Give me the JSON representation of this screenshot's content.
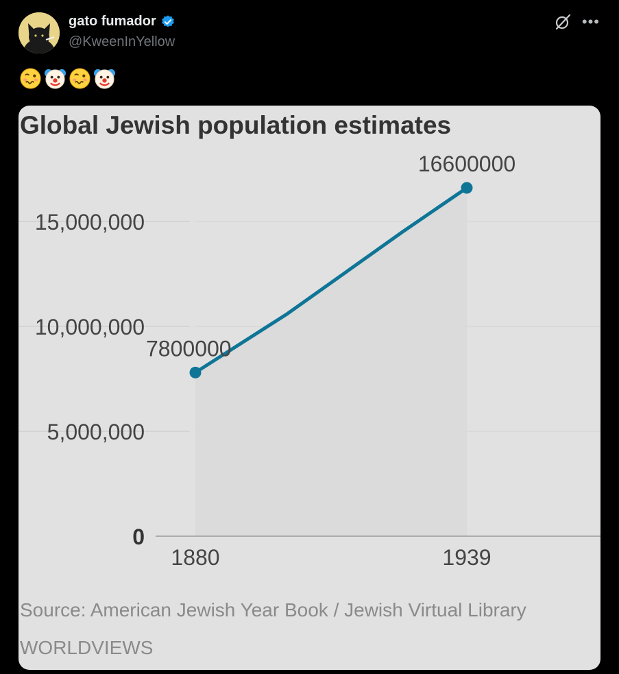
{
  "tweet": {
    "display_name": "gato fumador",
    "handle": "@KweenInYellow",
    "emojis": [
      "woozy-face-icon",
      "clown-face-icon",
      "woozy-face-icon",
      "clown-face-icon"
    ]
  },
  "colors": {
    "line": "#0f7597",
    "card_bg": "#e1e1e1",
    "verified": "#1d9bf0"
  },
  "chart_data": {
    "type": "line",
    "title": "Global Jewish population estimates",
    "x": [
      1880,
      1900,
      1925,
      1939
    ],
    "values": [
      7800000,
      10600000,
      14500000,
      16600000
    ],
    "point_labels": [
      {
        "x": 1880,
        "value": 7800000,
        "text": "7800000"
      },
      {
        "x": 1939,
        "value": 16600000,
        "text": "16600000"
      }
    ],
    "x_ticks": [
      {
        "value": 1880,
        "label": "1880"
      },
      {
        "value": 1939,
        "label": "1939"
      }
    ],
    "y_ticks": [
      {
        "value": 0,
        "label": "0"
      },
      {
        "value": 5000000,
        "label": "5,000,000"
      },
      {
        "value": 10000000,
        "label": "10,000,000"
      },
      {
        "value": 15000000,
        "label": "15,000,000"
      }
    ],
    "ylim": [
      0,
      18500000
    ],
    "grid": true,
    "source": "Source: American Jewish Year Book / Jewish Virtual Library",
    "credit": "WORLDVIEWS"
  }
}
